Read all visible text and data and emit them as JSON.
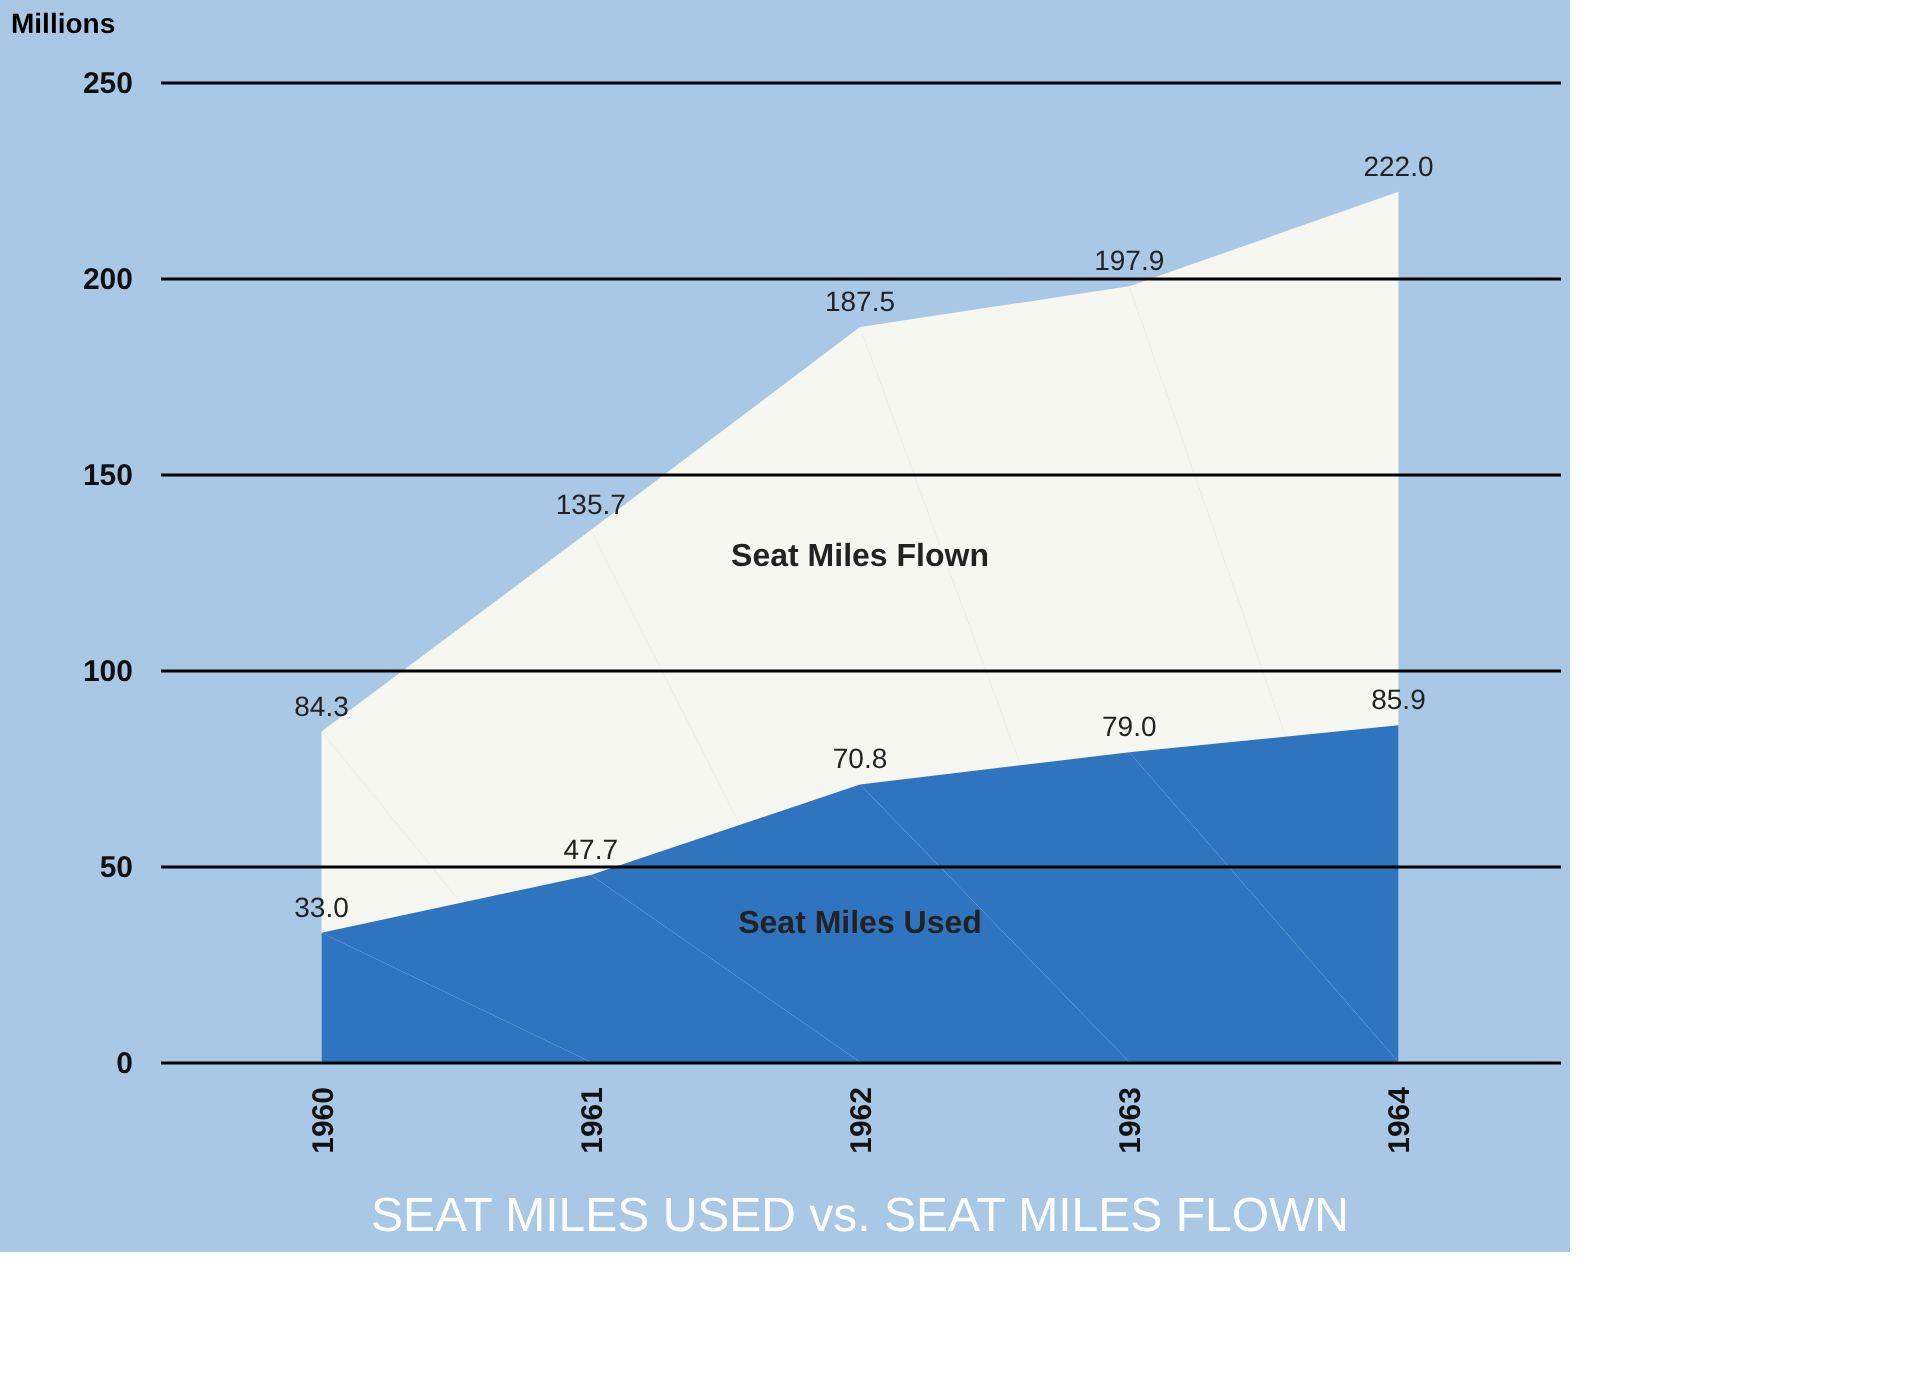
{
  "chart_data": {
    "type": "area",
    "title": "SEAT MILES USED vs. SEAT MILES FLOWN",
    "ylabel": "Millions",
    "categories": [
      "1960",
      "1961",
      "1962",
      "1963",
      "1964"
    ],
    "series": [
      {
        "name": "Seat Miles Flown",
        "color": "#f7f7f2",
        "values": [
          84.3,
          135.7,
          187.5,
          197.9,
          222.0
        ],
        "value_labels": [
          "84.3",
          "135.7",
          "187.5",
          "197.9",
          "222.0"
        ]
      },
      {
        "name": "Seat Miles Used",
        "color": "#2f74bf",
        "values": [
          33.0,
          47.7,
          70.8,
          79.0,
          85.9
        ],
        "value_labels": [
          "33.0",
          "47.7",
          "70.8",
          "79.0",
          "85.9"
        ]
      }
    ],
    "ylim": [
      0,
      250
    ],
    "yticks": [
      0,
      50,
      100,
      150,
      200,
      250
    ],
    "grid": "y"
  }
}
